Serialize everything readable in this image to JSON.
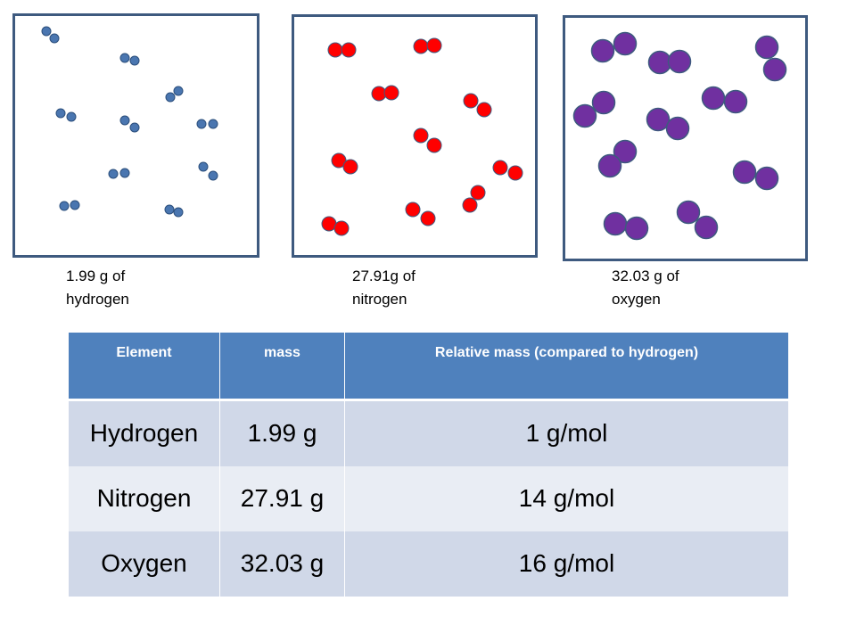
{
  "panels": [
    {
      "caption": "1.99  g of\nhydrogen",
      "particle_color": "#4a76b0",
      "particle_edge": "#2c4f7c"
    },
    {
      "caption": "27.91g of\nnitrogen",
      "particle_color": "#ff0000",
      "particle_edge": "#3e5a7f"
    },
    {
      "caption": "32.03 g of\noxygen",
      "particle_color": "#7030a0",
      "particle_edge": "#3e5a7f"
    }
  ],
  "table": {
    "headers": [
      "Element",
      "mass",
      "Relative mass (compared to hydrogen)"
    ],
    "rows": [
      [
        "Hydrogen",
        "1.99 g",
        "1 g/mol"
      ],
      [
        "Nitrogen",
        "27.91 g",
        "14 g/mol"
      ],
      [
        "Oxygen",
        "32.03 g",
        "16 g/mol"
      ]
    ],
    "header_color": "#4f81bd",
    "row_colors": [
      "#d0d8e8",
      "#e9edf4"
    ]
  }
}
